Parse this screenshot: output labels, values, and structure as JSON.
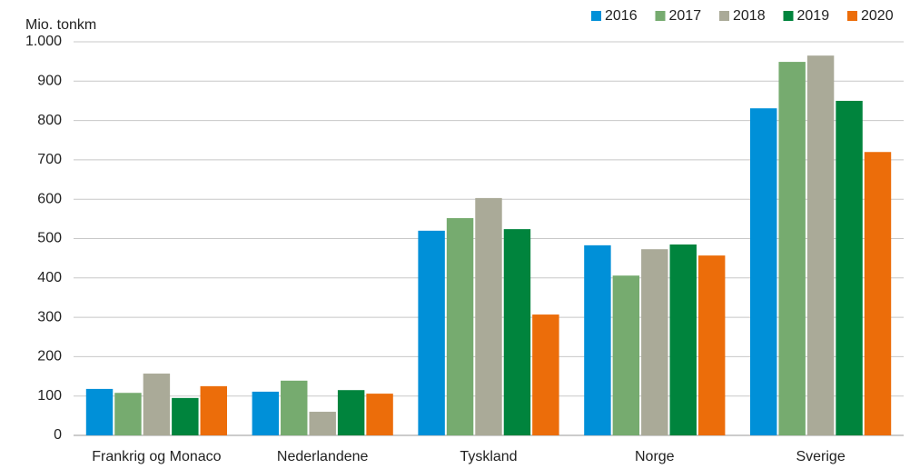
{
  "chart_data": {
    "type": "bar",
    "y_label": "Mio. tonkm",
    "categories": [
      "Frankrig og Monaco",
      "Nederlandene",
      "Tyskland",
      "Norge",
      "Sverige"
    ],
    "series": [
      {
        "name": "2016",
        "color": "#0090d8",
        "values": [
          118,
          111,
          520,
          483,
          831
        ]
      },
      {
        "name": "2017",
        "color": "#76ab6f",
        "values": [
          108,
          139,
          552,
          406,
          949
        ]
      },
      {
        "name": "2018",
        "color": "#aaaa98",
        "values": [
          157,
          60,
          603,
          473,
          965
        ]
      },
      {
        "name": "2019",
        "color": "#00843d",
        "values": [
          95,
          115,
          524,
          485,
          850
        ]
      },
      {
        "name": "2020",
        "color": "#ec6d0a",
        "values": [
          125,
          106,
          307,
          457,
          720
        ]
      }
    ],
    "ylim": [
      0,
      1000
    ],
    "yticks": [
      0,
      100,
      200,
      300,
      400,
      500,
      600,
      700,
      800,
      900,
      {
        "value": 1000,
        "label": "1.000"
      }
    ],
    "grid": true,
    "legend": "top-right"
  }
}
